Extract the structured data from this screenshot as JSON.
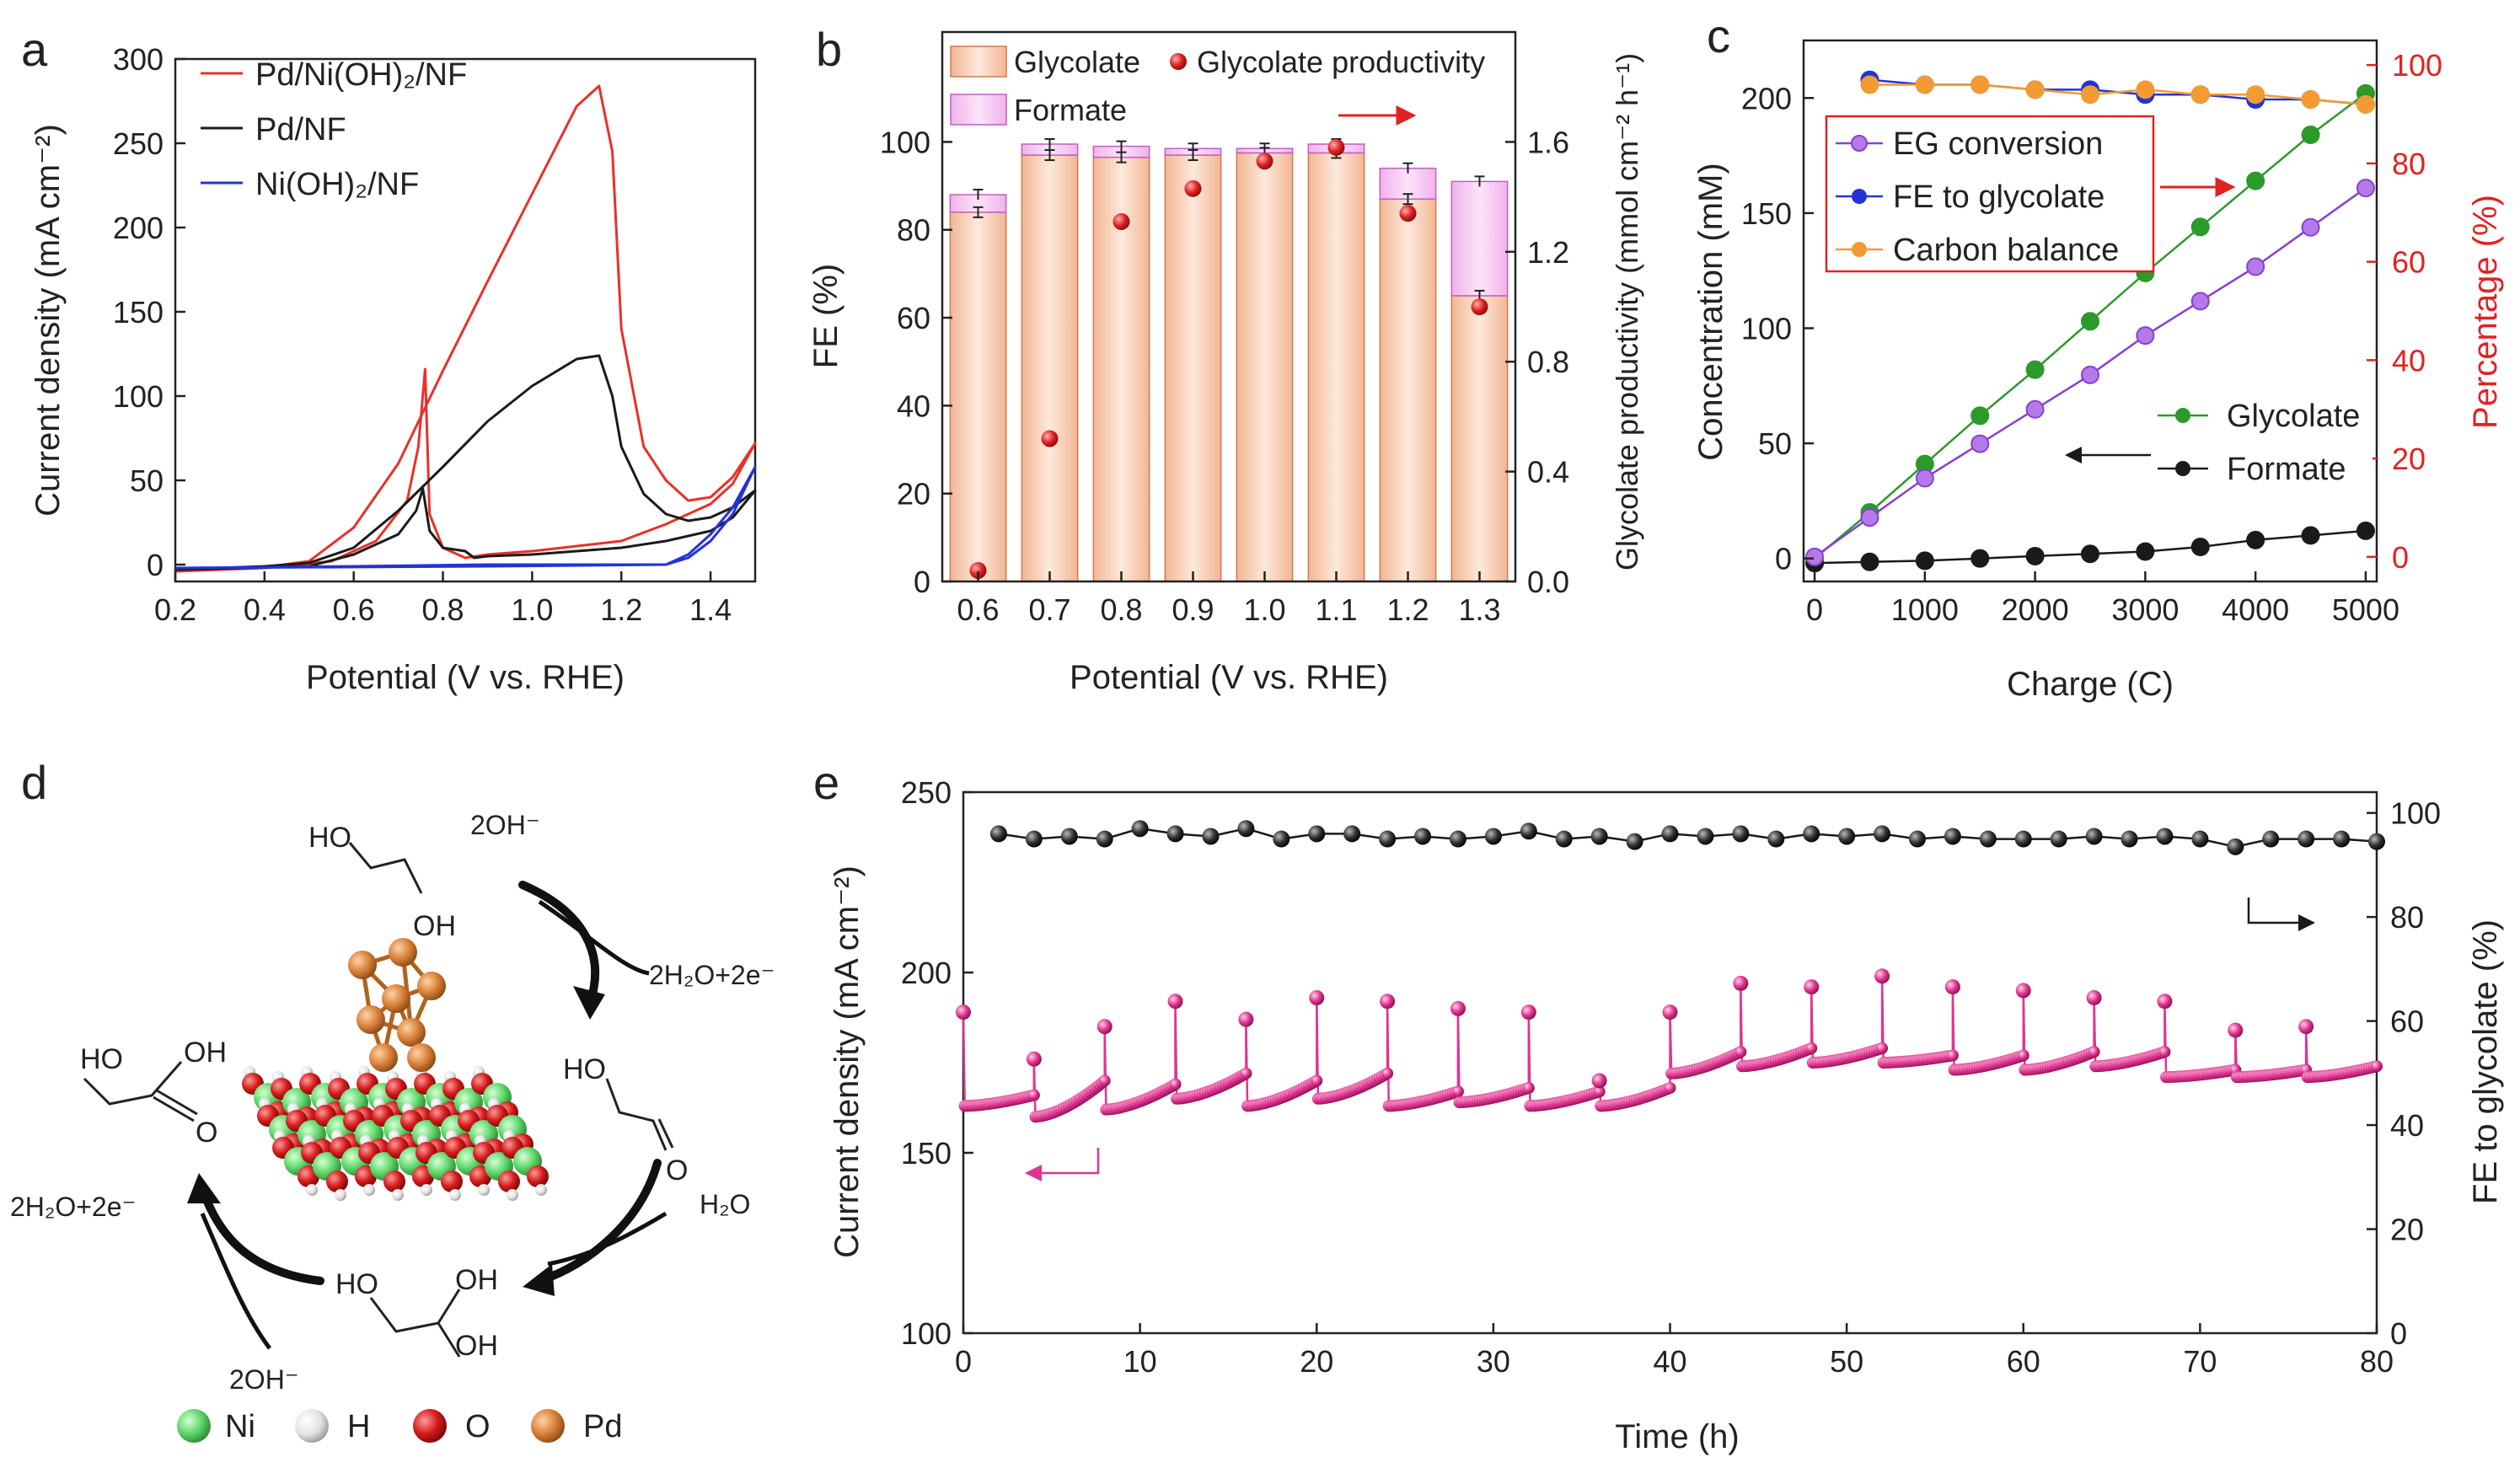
{
  "chart_data": [
    {
      "panel": "a",
      "type": "line",
      "xlabel": "Potential (V vs. RHE)",
      "ylabel": "Current density (mA cm⁻²)",
      "xlim": [
        0.2,
        1.5
      ],
      "ylim": [
        -10,
        300
      ],
      "xticks": [
        "0.2",
        "0.4",
        "0.6",
        "0.8",
        "1.0",
        "1.2",
        "1.4"
      ],
      "yticks": [
        "0",
        "50",
        "100",
        "150",
        "200",
        "250",
        "300"
      ],
      "legend": [
        "Pd/Ni(OH)₂/NF",
        "Pd/NF",
        "Ni(OH)₂/NF"
      ],
      "series": [
        {
          "name": "Pd/Ni(OH)₂/NF",
          "color": "#e8312a",
          "points": [
            [
              0.2,
              -3
            ],
            [
              0.4,
              -1.5
            ],
            [
              0.5,
              2
            ],
            [
              0.6,
              22
            ],
            [
              0.7,
              60
            ],
            [
              0.8,
              115
            ],
            [
              0.9,
              168
            ],
            [
              1.0,
              220
            ],
            [
              1.1,
              272
            ],
            [
              1.15,
              284
            ],
            [
              1.18,
              245
            ],
            [
              1.2,
              140
            ],
            [
              1.25,
              70
            ],
            [
              1.3,
              50
            ],
            [
              1.35,
              38
            ],
            [
              1.4,
              40
            ],
            [
              1.45,
              52
            ],
            [
              1.5,
              72
            ],
            [
              1.45,
              48
            ],
            [
              1.4,
              36
            ],
            [
              1.3,
              24
            ],
            [
              1.2,
              14
            ],
            [
              1.0,
              8
            ],
            [
              0.9,
              6
            ],
            [
              0.85,
              4
            ],
            [
              0.8,
              10
            ],
            [
              0.77,
              30
            ],
            [
              0.76,
              116
            ],
            [
              0.745,
              70
            ],
            [
              0.72,
              38
            ],
            [
              0.65,
              14
            ],
            [
              0.55,
              2
            ],
            [
              0.4,
              -2
            ],
            [
              0.2,
              -4
            ]
          ]
        },
        {
          "name": "Pd/NF",
          "color": "#1a1a1a",
          "points": [
            [
              0.2,
              -3
            ],
            [
              0.4,
              -1
            ],
            [
              0.5,
              1
            ],
            [
              0.6,
              10
            ],
            [
              0.7,
              32
            ],
            [
              0.8,
              58
            ],
            [
              0.9,
              85
            ],
            [
              1.0,
              106
            ],
            [
              1.1,
              122
            ],
            [
              1.15,
              124
            ],
            [
              1.18,
              100
            ],
            [
              1.2,
              70
            ],
            [
              1.25,
              42
            ],
            [
              1.3,
              30
            ],
            [
              1.35,
              26
            ],
            [
              1.4,
              28
            ],
            [
              1.45,
              34
            ],
            [
              1.5,
              44
            ],
            [
              1.45,
              28
            ],
            [
              1.4,
              20
            ],
            [
              1.3,
              14
            ],
            [
              1.2,
              10
            ],
            [
              1.0,
              6
            ],
            [
              0.9,
              5
            ],
            [
              0.87,
              4
            ],
            [
              0.85,
              8
            ],
            [
              0.8,
              10
            ],
            [
              0.77,
              20
            ],
            [
              0.755,
              45
            ],
            [
              0.74,
              32
            ],
            [
              0.7,
              18
            ],
            [
              0.6,
              6
            ],
            [
              0.5,
              -1
            ],
            [
              0.2,
              -3
            ]
          ]
        },
        {
          "name": "Ni(OH)₂/NF",
          "color": "#2433d6",
          "points": [
            [
              0.2,
              -2
            ],
            [
              0.6,
              -1
            ],
            [
              0.9,
              0
            ],
            [
              1.2,
              0
            ],
            [
              1.3,
              0
            ],
            [
              1.35,
              6
            ],
            [
              1.4,
              18
            ],
            [
              1.45,
              34
            ],
            [
              1.5,
              58
            ],
            [
              1.45,
              30
            ],
            [
              1.4,
              14
            ],
            [
              1.35,
              4
            ],
            [
              1.3,
              0
            ],
            [
              0.9,
              -1
            ],
            [
              0.2,
              -2
            ]
          ]
        }
      ]
    },
    {
      "panel": "b",
      "type": "bar",
      "xlabel": "Potential (V vs. RHE)",
      "ylabel": "FE (%)",
      "y2label": "Glycolate productivity (mmol cm⁻² h⁻¹)",
      "categories": [
        "0.6",
        "0.7",
        "0.8",
        "0.9",
        "1.0",
        "1.1",
        "1.2",
        "1.3"
      ],
      "ylim": [
        0,
        125
      ],
      "y2lim": [
        0,
        2.0
      ],
      "yticks": [
        "0",
        "20",
        "40",
        "60",
        "80",
        "100"
      ],
      "y2ticks": [
        "0.0",
        "0.4",
        "0.8",
        "1.2",
        "1.6"
      ],
      "legend": [
        "Glycolate",
        "Glycolate productivity",
        "Formate"
      ],
      "series": [
        {
          "name": "Glycolate",
          "color": "#f6c6a6",
          "values": [
            84,
            97,
            96.5,
            97,
            97.5,
            97.5,
            87,
            65
          ]
        },
        {
          "name": "Formate",
          "color": "#f6cdf2",
          "values": [
            4,
            2.5,
            2.5,
            1.5,
            1,
            2,
            7,
            26
          ]
        },
        {
          "name": "Glycolate productivity",
          "color": "#e02222",
          "values": [
            0.04,
            0.52,
            1.31,
            1.43,
            1.53,
            1.58,
            1.34,
            1.0
          ]
        }
      ]
    },
    {
      "panel": "c",
      "type": "line",
      "xlabel": "Charge (C)",
      "ylabel": "Concentration (mM)",
      "y2label": "Percentage (%)",
      "xlim": [
        -100,
        5100
      ],
      "ylim": [
        -10,
        225
      ],
      "y2lim": [
        -5,
        105
      ],
      "xticks": [
        "0",
        "1000",
        "2000",
        "3000",
        "4000",
        "5000"
      ],
      "yticks": [
        "0",
        "50",
        "100",
        "150",
        "200"
      ],
      "y2ticks": [
        "0",
        "20",
        "40",
        "60",
        "80",
        "100"
      ],
      "legend_right": [
        "EG conversion",
        "FE to glycolate",
        "Carbon balance"
      ],
      "legend_left": [
        "Glycolate",
        "Formate"
      ],
      "x": [
        0,
        500,
        1000,
        1500,
        2000,
        2500,
        3000,
        3500,
        4000,
        4500,
        5000
      ],
      "series": [
        {
          "name": "Glycolate",
          "axis": "left",
          "color": "#2a9a2a",
          "values": [
            0,
            20,
            41,
            62,
            82,
            103,
            124,
            144,
            164,
            184,
            202
          ]
        },
        {
          "name": "Formate",
          "axis": "left",
          "color": "#1a1a1a",
          "values": [
            -2,
            -1.5,
            -1,
            0,
            1,
            2,
            3,
            5,
            8,
            10,
            12
          ]
        },
        {
          "name": "EG conversion",
          "axis": "right",
          "color": "#8a3fd0",
          "values": [
            0,
            8,
            16,
            23,
            30,
            37,
            45,
            52,
            59,
            67,
            75
          ]
        },
        {
          "name": "FE to glycolate",
          "axis": "right",
          "color": "#2433d6",
          "values": [
            null,
            97,
            96,
            96,
            95,
            95,
            94,
            94,
            93,
            93,
            92
          ]
        },
        {
          "name": "Carbon balance",
          "axis": "right",
          "color": "#f39a32",
          "values": [
            null,
            96,
            96,
            96,
            95,
            94,
            95,
            94,
            94,
            93,
            92
          ]
        }
      ]
    },
    {
      "panel": "e",
      "type": "line",
      "xlabel": "Time (h)",
      "ylabel": "Current density (mA cm⁻²)",
      "y2label": "FE to glycolate (%)",
      "xlim": [
        0,
        80
      ],
      "ylim": [
        100,
        250
      ],
      "y2lim": [
        0,
        104
      ],
      "xticks": [
        "0",
        "10",
        "20",
        "30",
        "40",
        "50",
        "60",
        "70",
        "80"
      ],
      "yticks": [
        "100",
        "150",
        "200",
        "250"
      ],
      "y2ticks": [
        "0",
        "20",
        "40",
        "60",
        "80",
        "100"
      ],
      "cycle_hours": 4,
      "cycle_start": [
        189,
        176,
        185,
        192,
        187,
        193,
        192,
        190,
        189,
        170,
        189,
        197,
        196,
        199,
        196,
        195,
        193,
        192,
        184,
        185
      ],
      "cycle_min": [
        163,
        160,
        162,
        165,
        163,
        165,
        163,
        164,
        163,
        163,
        172,
        174,
        175,
        175,
        173,
        173,
        174,
        171,
        171,
        171
      ],
      "cycle_end": [
        166,
        170,
        169,
        172,
        170,
        172,
        167,
        168,
        167,
        168,
        178,
        179,
        179,
        177,
        177,
        178,
        178,
        173,
        173,
        174
      ],
      "series_right": {
        "name": "FE to glycolate",
        "color": "#1a1a1a",
        "x": [
          2,
          4,
          6,
          8,
          10,
          12,
          14,
          16,
          18,
          20,
          22,
          24,
          26,
          28,
          30,
          32,
          34,
          36,
          38,
          40,
          42,
          44,
          46,
          48,
          50,
          52,
          54,
          56,
          58,
          60,
          62,
          64,
          66,
          68,
          70,
          72,
          74,
          76,
          78,
          80
        ],
        "values": [
          96,
          95,
          95.5,
          95,
          97,
          96,
          95.5,
          97,
          95,
          96,
          96,
          95,
          95.5,
          95,
          95.5,
          96.5,
          95,
          95.5,
          94.5,
          96,
          95.5,
          96,
          95,
          96,
          95.5,
          96,
          95,
          95.5,
          95,
          95,
          95,
          95.5,
          95,
          95.5,
          95,
          93.5,
          95,
          95,
          95,
          94.5
        ]
      }
    }
  ],
  "panel_labels": {
    "a": "a",
    "b": "b",
    "c": "c",
    "d": "d",
    "e": "e"
  },
  "diagram_d": {
    "labels": [
      "HO",
      "OH",
      "2OH⁻",
      "2H₂O+2e⁻",
      "HO",
      "O",
      "H₂O",
      "HO",
      "OH",
      "OH",
      "2OH⁻",
      "2H₂O+2e⁻",
      "HO",
      "OH",
      "O"
    ],
    "atoms_legend": [
      {
        "label": "Ni",
        "color": "#5fd86a"
      },
      {
        "label": "H",
        "color": "#e6e6e6"
      },
      {
        "label": "O",
        "color": "#d41c1c"
      },
      {
        "label": "Pd",
        "color": "#d9823a"
      }
    ]
  }
}
